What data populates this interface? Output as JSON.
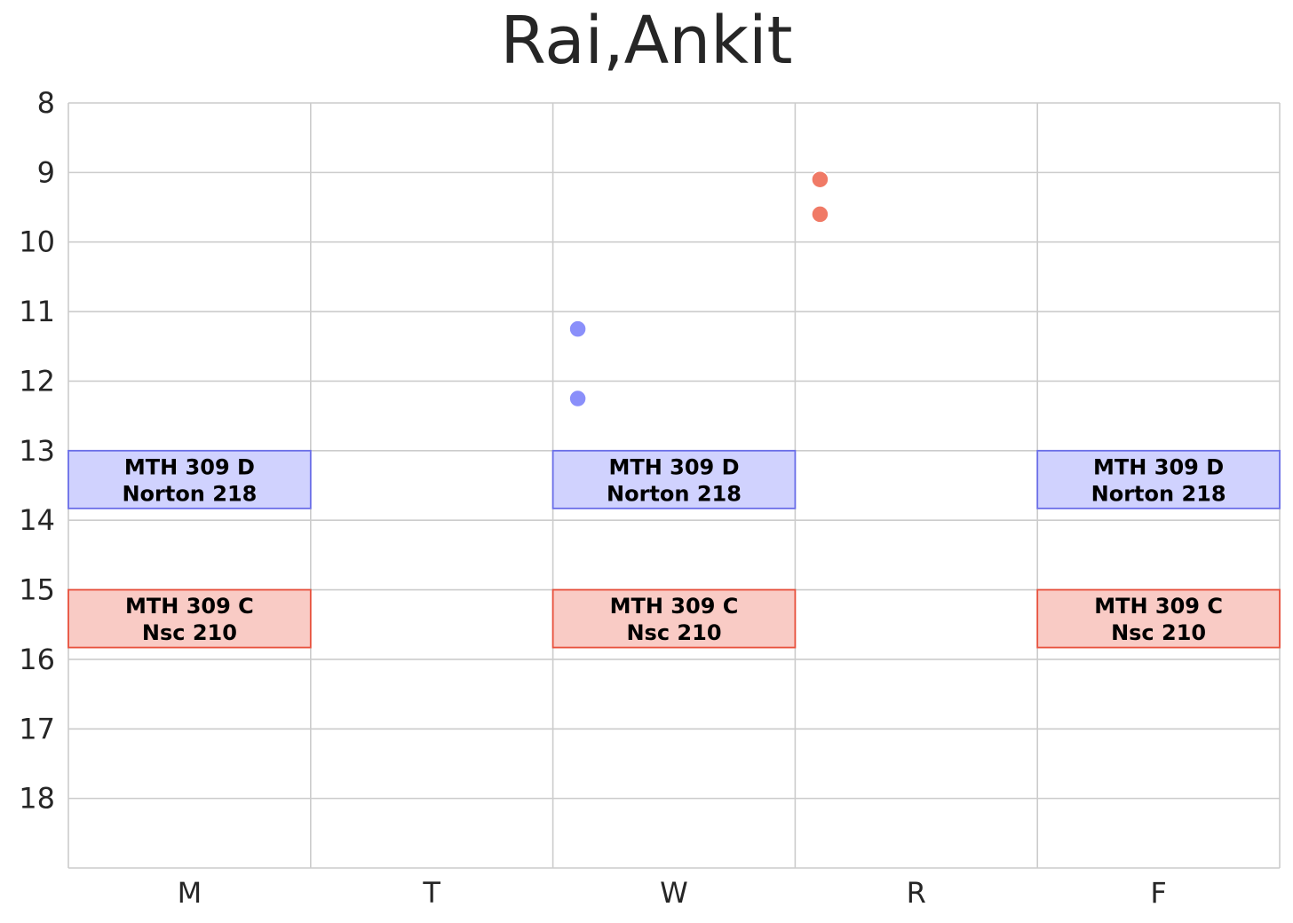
{
  "chart_data": {
    "type": "schedule",
    "title": "Rai,Ankit",
    "days": [
      "M",
      "T",
      "W",
      "R",
      "F"
    ],
    "hour_ticks": [
      8,
      9,
      10,
      11,
      12,
      13,
      14,
      15,
      16,
      17,
      18
    ],
    "ylim": [
      8,
      19
    ],
    "grid": true,
    "classes": [
      {
        "course": "MTH 309 D",
        "room": "Norton 218",
        "days": [
          "M",
          "W",
          "F"
        ],
        "start": 13.0,
        "end": 13.83,
        "fill": "#d0d2fe",
        "stroke": "#6a6ee8"
      },
      {
        "course": "MTH 309 C",
        "room": "Nsc 210",
        "days": [
          "M",
          "W",
          "F"
        ],
        "start": 15.0,
        "end": 15.83,
        "fill": "#f9cbc5",
        "stroke": "#e8503c"
      }
    ],
    "points": [
      {
        "day": "W",
        "hour": 11.25,
        "color": "#8a8ffa"
      },
      {
        "day": "W",
        "hour": 12.25,
        "color": "#8a8ffa"
      },
      {
        "day": "R",
        "hour": 9.1,
        "color": "#f07a66"
      },
      {
        "day": "R",
        "hour": 9.6,
        "color": "#f07a66"
      }
    ]
  }
}
